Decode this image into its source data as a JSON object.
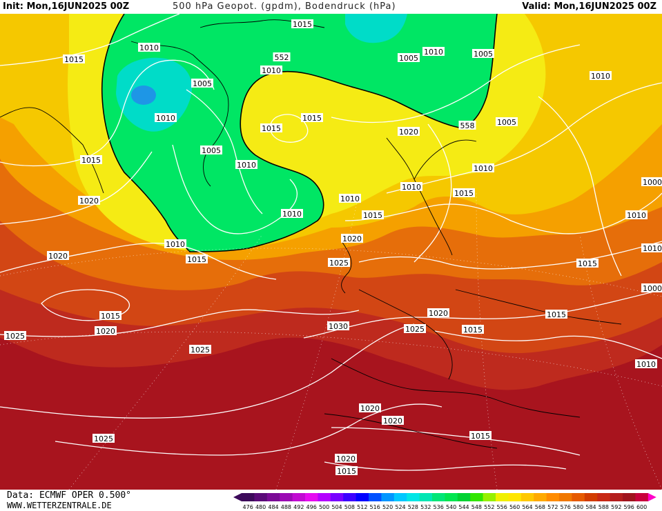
{
  "header": {
    "init": "Init: Mon,16JUN2025 00Z",
    "title": "500 hPa Geopot. (gpdm), Bodendruck (hPa)",
    "valid": "Valid: Mon,16JUN2025 00Z"
  },
  "footer": {
    "data_source": "Data: ECMWF OPER 0.500°",
    "website": "WWW.WETTERZENTRALE.DE"
  },
  "legend": {
    "values": [
      "476",
      "480",
      "484",
      "488",
      "492",
      "496",
      "500",
      "504",
      "508",
      "512",
      "516",
      "520",
      "524",
      "528",
      "532",
      "536",
      "540",
      "544",
      "548",
      "552",
      "556",
      "560",
      "564",
      "568",
      "572",
      "576",
      "580",
      "584",
      "588",
      "592",
      "596",
      "600"
    ],
    "colors": [
      "#3c0a5a",
      "#5a0a78",
      "#7a0a96",
      "#9b0ab4",
      "#c10ad2",
      "#e60af0",
      "#b400ff",
      "#7800ff",
      "#3c00ff",
      "#0000ff",
      "#0050ff",
      "#0096ff",
      "#00c8ff",
      "#00e6e6",
      "#00e6b4",
      "#00e678",
      "#00e650",
      "#00d232",
      "#32e600",
      "#96f000",
      "#f0f000",
      "#ffe600",
      "#ffc800",
      "#ffaa00",
      "#ff8c00",
      "#f07800",
      "#e65a00",
      "#d23c00",
      "#c82814",
      "#b41e1e",
      "#a0141e",
      "#c8003c"
    ],
    "left_arrow_color": "#3c0a5a",
    "right_arrow_color": "#ff00c8"
  },
  "map": {
    "contour_labels": [
      "1015",
      "1010",
      "1005",
      "1010",
      "552",
      "1010",
      "1015",
      "1010",
      "1005",
      "1005",
      "1015",
      "1015",
      "1005",
      "1010",
      "1015",
      "1020",
      "1015",
      "1010",
      "1010",
      "1010",
      "1010",
      "1005",
      "1020",
      "1015",
      "1010",
      "1015",
      "1020",
      "1020",
      "1015",
      "1015",
      "1025",
      "1020",
      "1030",
      "1025",
      "1015",
      "1015",
      "1025",
      "1025",
      "1020",
      "1020",
      "1015",
      "1025",
      "1020",
      "1015",
      "1010",
      "1010",
      "1000",
      "1010",
      "1010",
      "558",
      "1000",
      "1020"
    ],
    "colors": {
      "low_core": "#1e96e6",
      "low_inner": "#00dcc8",
      "green": "#00e664",
      "yellow": "#f5eb14",
      "light_orange": "#f5c800",
      "orange": "#f5a000",
      "dark_orange": "#e66e0a",
      "red_orange": "#d24614",
      "red": "#be2a1e",
      "dark_red": "#a8141e",
      "isobar": "#ffffff",
      "coast": "#000000"
    }
  }
}
